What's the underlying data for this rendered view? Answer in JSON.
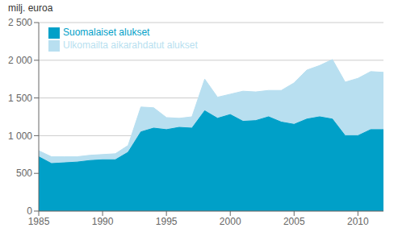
{
  "chart_data": {
    "type": "area",
    "ylabel": "milj. euroa",
    "x": [
      1985,
      1986,
      1987,
      1988,
      1989,
      1990,
      1991,
      1992,
      1993,
      1994,
      1995,
      1996,
      1997,
      1998,
      1999,
      2000,
      2001,
      2002,
      2003,
      2004,
      2005,
      2006,
      2007,
      2008,
      2009,
      2010,
      2011,
      2012
    ],
    "series": [
      {
        "name": "Ulkomailta aikarahdatut alukset",
        "color": "#b8dff0",
        "values": [
          800,
          720,
          720,
          720,
          740,
          750,
          760,
          870,
          1380,
          1370,
          1240,
          1230,
          1250,
          1750,
          1510,
          1550,
          1590,
          1580,
          1600,
          1600,
          1700,
          1870,
          1930,
          2010,
          1710,
          1760,
          1850,
          1840
        ]
      },
      {
        "name": "Suomalaiset alukset",
        "color": "#00a0c8",
        "values": [
          720,
          630,
          640,
          650,
          670,
          680,
          680,
          780,
          1050,
          1100,
          1080,
          1110,
          1100,
          1330,
          1230,
          1280,
          1190,
          1200,
          1250,
          1180,
          1150,
          1220,
          1250,
          1220,
          1000,
          1000,
          1080,
          1080
        ]
      }
    ],
    "xlim": [
      1985,
      2012
    ],
    "xticks": [
      1985,
      1990,
      1995,
      2000,
      2005,
      2010
    ],
    "ylim": [
      0,
      2500
    ],
    "yticks": [
      0,
      500,
      {
        "value": 1000,
        "label": "1 000"
      },
      {
        "value": 1500,
        "label": "1 500"
      },
      {
        "value": 2000,
        "label": "2 000"
      },
      {
        "value": 2500,
        "label": "2 500"
      }
    ],
    "grid": true,
    "legend": "upper left",
    "stacked": false
  }
}
